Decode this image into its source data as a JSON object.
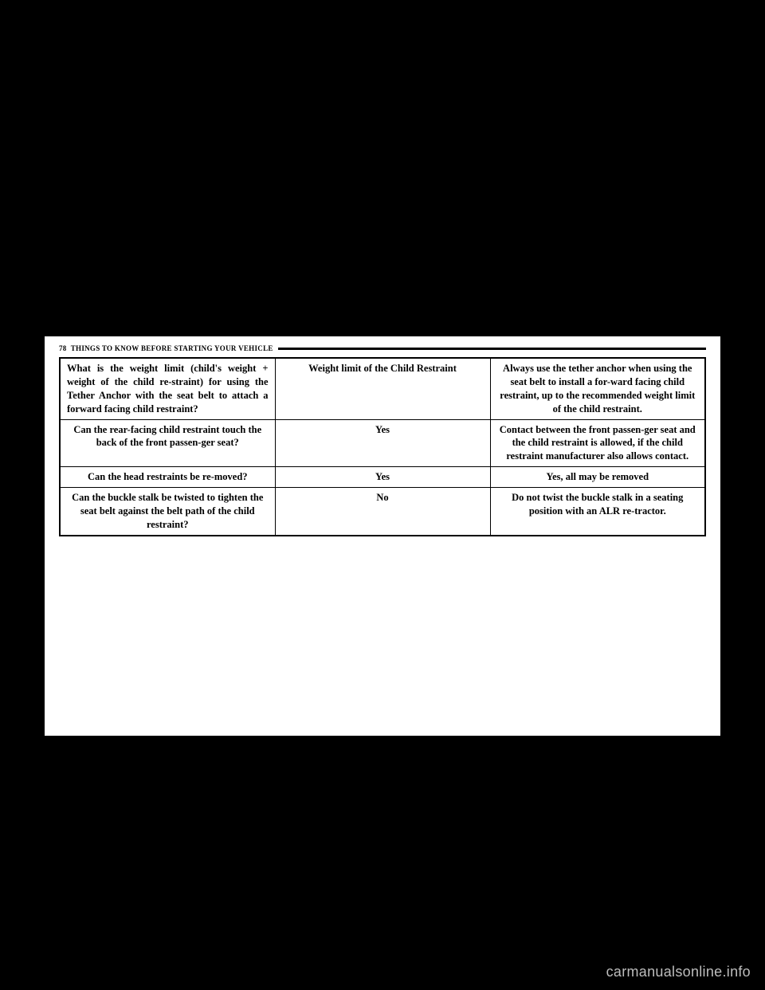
{
  "header": {
    "page_num": "78",
    "section": "THINGS TO KNOW BEFORE STARTING YOUR VEHICLE"
  },
  "table": {
    "rows": [
      {
        "q": "What is the weight limit (child's weight + weight of the child re-straint) for using the Tether Anchor with the seat belt to attach a forward facing child restraint?",
        "mid": "Weight limit of the Child Restraint",
        "ans": "Always use the tether anchor when using the seat belt to install a for-ward facing child restraint, up to the recommended weight limit of the child restraint.",
        "q_align": "justify"
      },
      {
        "q": "Can the rear-facing child restraint touch the back of the front passen-ger seat?",
        "mid": "Yes",
        "ans": "Contact between the front passen-ger seat and the child restraint is allowed, if the child restraint manufacturer also allows contact.",
        "q_align": "center"
      },
      {
        "q": "Can the head restraints be re-moved?",
        "mid": "Yes",
        "ans": "Yes, all may be removed",
        "q_align": "center"
      },
      {
        "q": "Can the buckle stalk be twisted to tighten the seat belt against the belt path of the child restraint?",
        "mid": "No",
        "ans": "Do not twist the buckle stalk in a seating position with an ALR re-tractor.",
        "q_align": "center"
      }
    ]
  },
  "watermark": "carmanualsonline.info"
}
